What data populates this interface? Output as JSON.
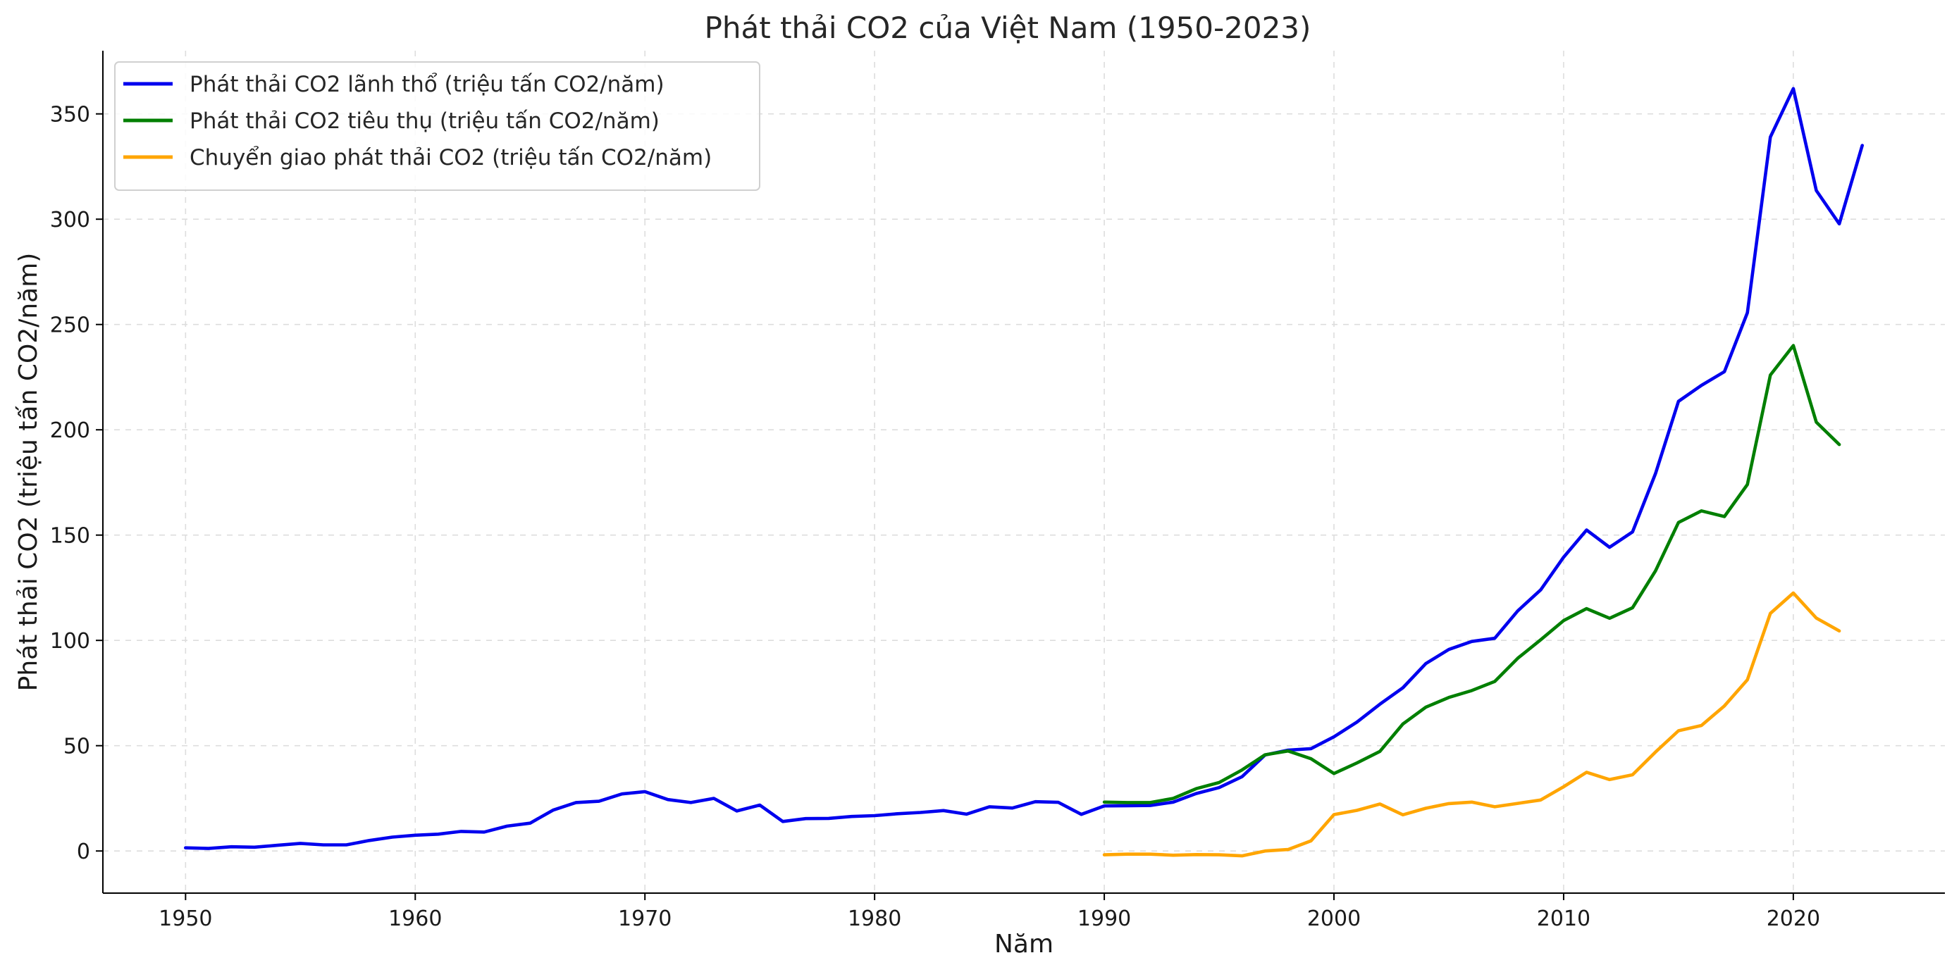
{
  "chart_data": {
    "type": "line",
    "title": "Phát thải CO2 của Việt Nam (1950-2023)",
    "xlabel": "Năm",
    "ylabel": "Phát thải CO2 (triệu tấn CO2/năm)",
    "xlim": [
      1946.4,
      2026.6
    ],
    "ylim": [
      -20,
      380
    ],
    "xticks": [
      1950,
      1960,
      1970,
      1980,
      1990,
      2000,
      2010,
      2020
    ],
    "yticks": [
      0,
      50,
      100,
      150,
      200,
      250,
      300,
      350
    ],
    "grid": true,
    "legend": "top-left",
    "series": [
      {
        "name": "Phát thải CO2 lãnh thổ (triệu tấn CO2/năm)",
        "color": "#0000ee",
        "x": [
          1950,
          1951,
          1952,
          1953,
          1954,
          1955,
          1956,
          1957,
          1958,
          1959,
          1960,
          1961,
          1962,
          1963,
          1964,
          1965,
          1966,
          1967,
          1968,
          1969,
          1970,
          1971,
          1972,
          1973,
          1974,
          1975,
          1976,
          1977,
          1978,
          1979,
          1980,
          1981,
          1982,
          1983,
          1984,
          1985,
          1986,
          1987,
          1988,
          1989,
          1990,
          1991,
          1992,
          1993,
          1994,
          1995,
          1996,
          1997,
          1998,
          1999,
          2000,
          2001,
          2002,
          2003,
          2004,
          2005,
          2006,
          2007,
          2008,
          2009,
          2010,
          2011,
          2012,
          2013,
          2014,
          2015,
          2016,
          2017,
          2018,
          2019,
          2020,
          2021,
          2022,
          2023
        ],
        "values": [
          1.5,
          1.2,
          2,
          1.8,
          2.7,
          3.6,
          2.9,
          2.9,
          5,
          6.6,
          7.5,
          8,
          9.3,
          9,
          11.8,
          13.2,
          19.4,
          23,
          23.6,
          27.1,
          28.2,
          24.4,
          23,
          25,
          19,
          21.8,
          14,
          15.4,
          15.5,
          16.4,
          16.8,
          17.7,
          18.3,
          19.2,
          17.5,
          21,
          20.4,
          23.4,
          23.1,
          17.4,
          21.4,
          21.5,
          21.6,
          23.2,
          27.3,
          30.1,
          35.3,
          45.6,
          47.9,
          48.6,
          54.2,
          61.2,
          69.7,
          77.5,
          89,
          95.7,
          99.5,
          101,
          114,
          124,
          139.5,
          152.4,
          144.2,
          151.5,
          179.2,
          213.5,
          221.1,
          227.6,
          255.6,
          339,
          362,
          313.6,
          297.8,
          335
        ]
      },
      {
        "name": "Phát thải CO2 tiêu thụ (triệu tấn CO2/năm)",
        "color": "#007f00",
        "x": [
          1990,
          1991,
          1992,
          1993,
          1994,
          1995,
          1996,
          1997,
          1998,
          1999,
          2000,
          2001,
          2002,
          2003,
          2004,
          2005,
          2006,
          2007,
          2008,
          2009,
          2010,
          2011,
          2012,
          2013,
          2014,
          2015,
          2016,
          2017,
          2018,
          2019,
          2020,
          2021,
          2022
        ],
        "values": [
          23.2,
          23,
          23,
          25,
          29.6,
          32.5,
          38.5,
          45.7,
          47.5,
          43.8,
          36.8,
          41.8,
          47.3,
          60.3,
          68.3,
          72.9,
          76.2,
          80.5,
          91.5,
          100.3,
          109.4,
          115.1,
          110.5,
          115.5,
          133,
          156,
          161.5,
          158.8,
          174,
          226,
          240,
          203.6,
          193
        ]
      },
      {
        "name": "Chuyển giao phát thải CO2 (triệu tấn CO2/năm)",
        "color": "#ffa500",
        "x": [
          1990,
          1991,
          1992,
          1993,
          1994,
          1995,
          1996,
          1997,
          1998,
          1999,
          2000,
          2001,
          2002,
          2003,
          2004,
          2005,
          2006,
          2007,
          2008,
          2009,
          2010,
          2011,
          2012,
          2013,
          2014,
          2015,
          2016,
          2017,
          2018,
          2019,
          2020,
          2021,
          2022
        ],
        "values": [
          -1.8,
          -1.5,
          -1.5,
          -2,
          -1.7,
          -1.8,
          -2.3,
          0,
          0.7,
          4.8,
          17.3,
          19.3,
          22.3,
          17.2,
          20.3,
          22.5,
          23.2,
          21,
          22.6,
          24.2,
          30.5,
          37.4,
          33.9,
          36.2,
          47,
          57.1,
          59.6,
          68.9,
          81.3,
          112.8,
          122.5,
          110.6,
          104.5
        ]
      }
    ]
  }
}
